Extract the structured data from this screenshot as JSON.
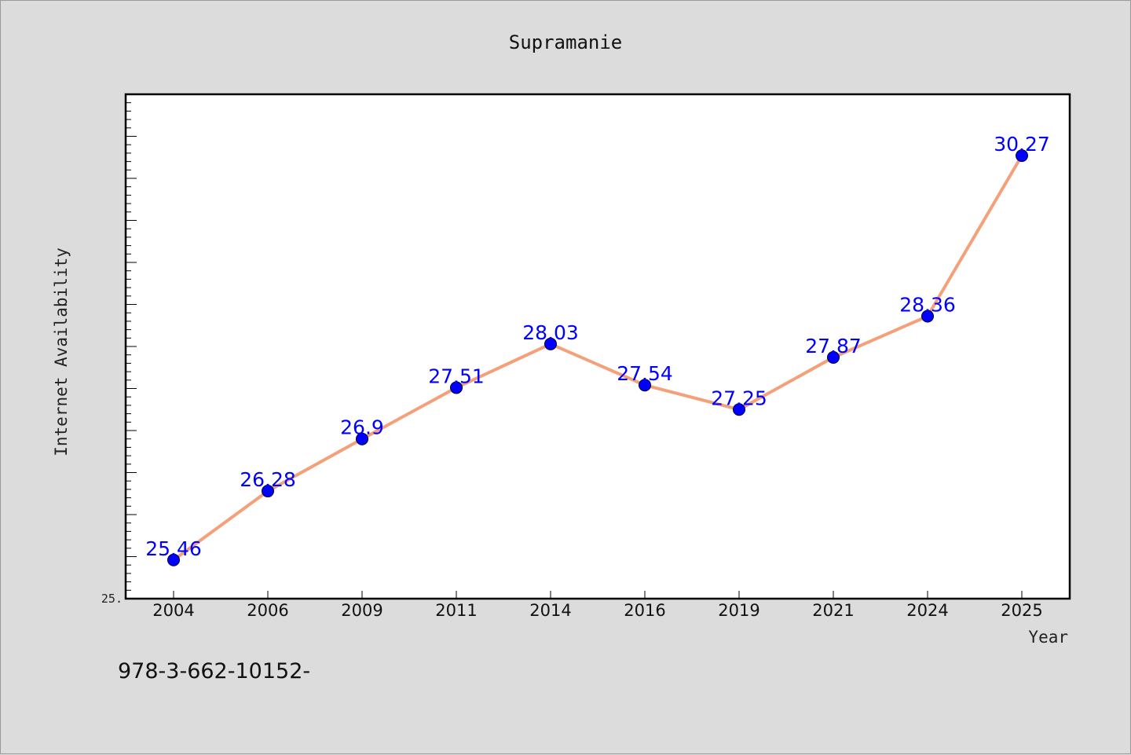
{
  "chart_data": {
    "type": "line",
    "title": "Supramanie",
    "xlabel": "Year",
    "ylabel": "Internet Availability",
    "categories": [
      "2004",
      "2006",
      "2009",
      "2011",
      "2014",
      "2016",
      "2019",
      "2021",
      "2024",
      "2025"
    ],
    "values": [
      25.46,
      26.28,
      26.9,
      27.51,
      28.03,
      27.54,
      27.25,
      27.87,
      28.36,
      30.27
    ],
    "data_labels": [
      "25.46",
      "26.28",
      "26.9",
      "27.51",
      "28.03",
      "27.54",
      "27.25",
      "27.87",
      "28.36",
      "30.27"
    ],
    "ylim": [
      25.0,
      31.0
    ],
    "y_tick_label": "25.",
    "grid": false,
    "legend": "none",
    "colors": {
      "line": "#f4a07a",
      "marker": "#0000ff",
      "label": "#0000ff",
      "plot_bg": "#ffffff",
      "page_bg": "#dcdcdc"
    }
  },
  "footer": {
    "isbn_text": "978-3-662-10152-"
  }
}
